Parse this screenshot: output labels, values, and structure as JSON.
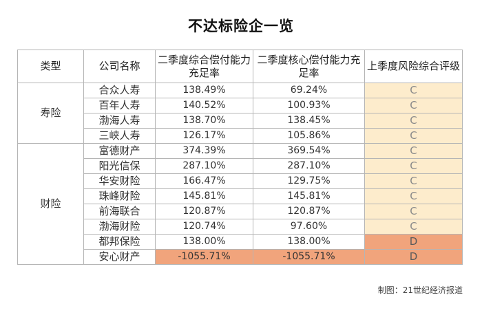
{
  "title": "不达标险企一览",
  "headers": {
    "type": "类型",
    "company": "公司名称",
    "comprehensive": "二季度综合偿付能力充足率",
    "core": "二季度核心偿付能力充足率",
    "risk": "上季度风险综合评级"
  },
  "groups": {
    "life": "寿险",
    "property": "财险"
  },
  "rows": [
    {
      "name": "合众人寿",
      "comprehensive": "138.49%",
      "core": "69.24%",
      "risk": "C"
    },
    {
      "name": "百年人寿",
      "comprehensive": "140.52%",
      "core": "100.93%",
      "risk": "C"
    },
    {
      "name": "渤海人寿",
      "comprehensive": "138.70%",
      "core": "138.45%",
      "risk": "C"
    },
    {
      "name": "三峡人寿",
      "comprehensive": "126.17%",
      "core": "105.86%",
      "risk": "C"
    },
    {
      "name": "富德财产",
      "comprehensive": "374.39%",
      "core": "369.54%",
      "risk": "C"
    },
    {
      "name": "阳光信保",
      "comprehensive": "287.10%",
      "core": "287.10%",
      "risk": "C"
    },
    {
      "name": "华安财险",
      "comprehensive": "166.47%",
      "core": "129.75%",
      "risk": "C"
    },
    {
      "name": "珠峰财险",
      "comprehensive": "145.81%",
      "core": "145.81%",
      "risk": "C"
    },
    {
      "name": "前海联合",
      "comprehensive": "120.87%",
      "core": "120.87%",
      "risk": "C"
    },
    {
      "name": "渤海财险",
      "comprehensive": "120.74%",
      "core": "97.60%",
      "risk": "C"
    },
    {
      "name": "都邦保险",
      "comprehensive": "138.00%",
      "core": "138.00%",
      "risk": "D"
    },
    {
      "name": "安心财产",
      "comprehensive": "-1055.71%",
      "core": "-1055.71%",
      "risk": "D"
    }
  ],
  "source": "制图：21世纪经济报道",
  "colors": {
    "grade_c": "#fdeccc",
    "grade_d": "#f1a47c",
    "negative": "#f1a47c"
  }
}
